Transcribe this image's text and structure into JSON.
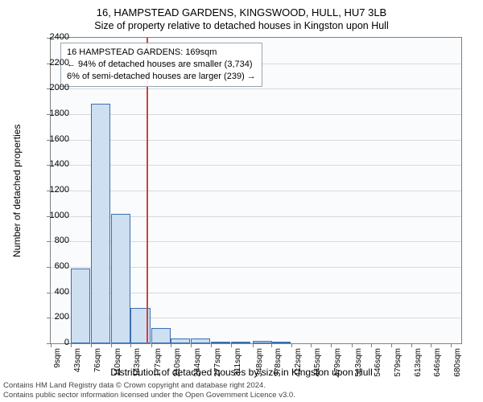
{
  "title_line1": "16, HAMPSTEAD GARDENS, KINGSWOOD, HULL, HU7 3LB",
  "title_line2": "Size of property relative to detached houses in Kingston upon Hull",
  "ylabel": "Number of detached properties",
  "xlabel": "Distribution of detached houses by size in Kingston upon Hull",
  "chart": {
    "type": "histogram",
    "ylim_max": 2400,
    "ytick_step": 200,
    "yticks": [
      0,
      200,
      400,
      600,
      800,
      1000,
      1200,
      1400,
      1600,
      1800,
      2000,
      2200,
      2400
    ],
    "x_min": 9,
    "x_max": 697,
    "xtick_labels": [
      "9sqm",
      "43sqm",
      "76sqm",
      "110sqm",
      "143sqm",
      "177sqm",
      "210sqm",
      "244sqm",
      "277sqm",
      "311sqm",
      "348sqm",
      "378sqm",
      "412sqm",
      "445sqm",
      "479sqm",
      "513sqm",
      "546sqm",
      "579sqm",
      "613sqm",
      "646sqm",
      "680sqm"
    ],
    "xtick_values": [
      9,
      43,
      76,
      110,
      143,
      177,
      210,
      244,
      277,
      311,
      348,
      378,
      412,
      445,
      479,
      513,
      546,
      579,
      613,
      646,
      680
    ],
    "bars": [
      {
        "x": 43,
        "v": 590
      },
      {
        "x": 76,
        "v": 1880
      },
      {
        "x": 110,
        "v": 1020
      },
      {
        "x": 143,
        "v": 280
      },
      {
        "x": 177,
        "v": 120
      },
      {
        "x": 210,
        "v": 40
      },
      {
        "x": 244,
        "v": 35
      },
      {
        "x": 277,
        "v": 15
      },
      {
        "x": 311,
        "v": 10
      },
      {
        "x": 348,
        "v": 20
      },
      {
        "x": 378,
        "v": 10
      }
    ],
    "bar_fill": "#cedff2",
    "bar_border": "#3a6fb0",
    "background": "#fafbfc",
    "grid_color": "#d6d9dc",
    "refline_x": 169,
    "refline_color": "#d04040"
  },
  "annotation": {
    "line1": "16 HAMPSTEAD GARDENS: 169sqm",
    "line2": "← 94% of detached houses are smaller (3,734)",
    "line3": "6% of semi-detached houses are larger (239) →"
  },
  "footer_line1": "Contains HM Land Registry data © Crown copyright and database right 2024.",
  "footer_line2": "Contains public sector information licensed under the Open Government Licence v3.0."
}
